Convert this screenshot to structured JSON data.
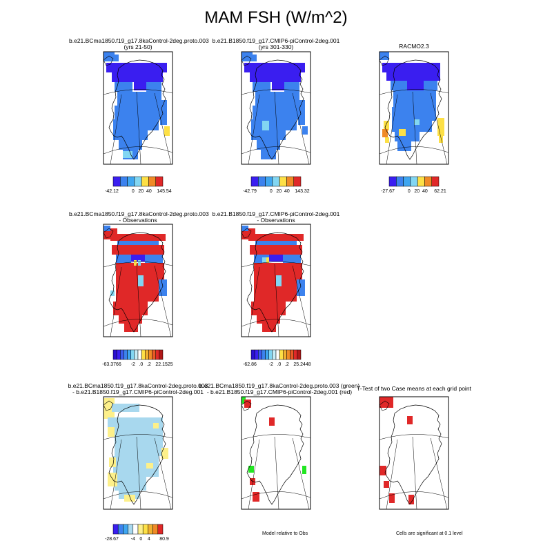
{
  "title": "MAM FSH (W/m^2)",
  "panels": [
    {
      "line1": "b.e21.BCma1850.f19_g17.8kaControl-2deg.proto.003",
      "line2": "(yrs 21-50)",
      "colorbar": {
        "min": "-42.12",
        "ticks": [
          "0",
          "20",
          "40"
        ],
        "max": "145.54",
        "colors": [
          "#3a1ef0",
          "#3c82ee",
          "#3fa6f0",
          "#82d6f2",
          "#fde046",
          "#f08a26",
          "#e02828"
        ]
      }
    },
    {
      "line1": "b.e21.B1850.f19_g17.CMIP6-piControl-2deg.001",
      "line2": "(yrs 301-330)",
      "colorbar": {
        "min": "-42.79",
        "ticks": [
          "0",
          "20",
          "40"
        ],
        "max": "143.32",
        "colors": [
          "#3a1ef0",
          "#3c82ee",
          "#3fa6f0",
          "#82d6f2",
          "#fde046",
          "#f08a26",
          "#e02828"
        ]
      }
    },
    {
      "line1": "RACMO2.3",
      "line2": "",
      "colorbar": {
        "min": "-27.67",
        "ticks": [
          "0",
          "20",
          "40"
        ],
        "max": "62.21",
        "colors": [
          "#3a1ef0",
          "#3c82ee",
          "#3fa6f0",
          "#82d6f2",
          "#fde046",
          "#f08a26",
          "#e02828"
        ]
      }
    },
    {
      "line1": "b.e21.BCma1850.f19_g17.8kaControl-2deg.proto.003",
      "line2": "- Observations",
      "colorbar": {
        "min": "-63.3766",
        "ticks": [
          "-2",
          ".0",
          ".2"
        ],
        "max": "22.1525",
        "colors": [
          "#2a0fd0",
          "#3a1ef0",
          "#3c5aee",
          "#3c82ee",
          "#3fa6f0",
          "#82d6f2",
          "#c8eef8",
          "#ffffff",
          "#fde046",
          "#f0b030",
          "#f08a26",
          "#e85a26",
          "#e02828",
          "#b01818"
        ]
      }
    },
    {
      "line1": "b.e21.B1850.f19_g17.CMIP6-piControl-2deg.001",
      "line2": "- Observations",
      "colorbar": {
        "min": "-62.86",
        "ticks": [
          "-2",
          ".0",
          ".2"
        ],
        "max": "25.2448",
        "colors": [
          "#2a0fd0",
          "#3a1ef0",
          "#3c5aee",
          "#3c82ee",
          "#3fa6f0",
          "#82d6f2",
          "#c8eef8",
          "#ffffff",
          "#fde046",
          "#f0b030",
          "#f08a26",
          "#e85a26",
          "#e02828",
          "#b01818"
        ]
      }
    },
    {
      "line1": "b.e21.BCma1850.f19_g17.8kaControl-2deg.proto.003",
      "line2": "- b.e21.B1850.f19_g17.CMIP6-piControl-2deg.001",
      "colorbar": {
        "min": "-28.67",
        "ticks": [
          "-4",
          "0",
          "4"
        ],
        "max": "80.9",
        "colors": [
          "#3a1ef0",
          "#3c82ee",
          "#3fa6f0",
          "#a8d8ee",
          "#ffffff",
          "#fdf08a",
          "#fde046",
          "#f0b030",
          "#f08a26",
          "#e02828"
        ]
      }
    },
    {
      "line1": "b.e21.BCma1850.f19_g17.8kaControl-2deg.proto.003 (green)",
      "line2": "- b.e21.B1850.f19_g17.CMIP6-piControl-2deg.001 (red)",
      "note": "Model relative to Obs"
    },
    {
      "line1": "T-Test of two Case means at each grid point",
      "line2": "",
      "note": "Cells are significant at 0.1 level"
    }
  ],
  "colors": {
    "purple": "#3a1ef0",
    "blue": "#3c82ee",
    "lightblue": "#82d6f2",
    "yellow": "#fde046",
    "orange": "#f08a26",
    "red": "#e02828",
    "palebl": "#a8d8ee",
    "paleyel": "#fdf08a",
    "green": "#22e622"
  }
}
